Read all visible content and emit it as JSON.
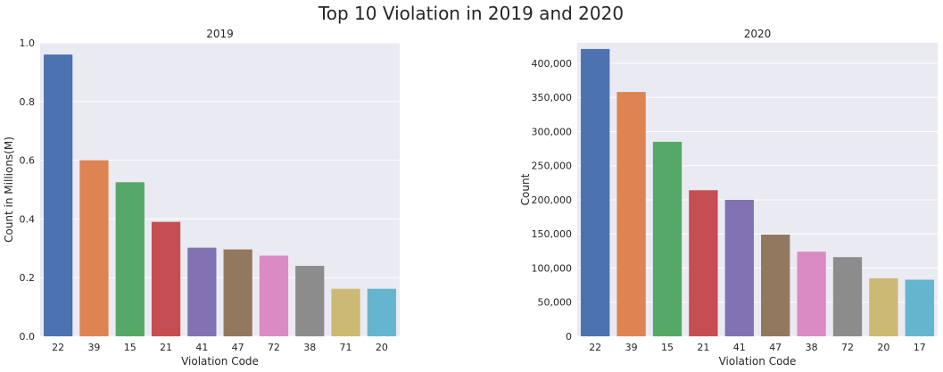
{
  "figure_title": "Top 10 Violation in 2019 and 2020",
  "chart_data": [
    {
      "type": "bar",
      "title": "2019",
      "xlabel": "Violation Code",
      "ylabel": "Count in Millions(M)",
      "categories": [
        "22",
        "39",
        "15",
        "21",
        "41",
        "47",
        "72",
        "38",
        "71",
        "20"
      ],
      "values": [
        0.96,
        0.6,
        0.525,
        0.39,
        0.302,
        0.296,
        0.275,
        0.24,
        0.162,
        0.162
      ],
      "ylim": [
        0,
        1.0
      ],
      "yticks": [
        0.0,
        0.2,
        0.4,
        0.6,
        0.8,
        1.0
      ],
      "ytick_labels": [
        "0.0",
        "0.2",
        "0.4",
        "0.6",
        "0.8",
        "1.0"
      ],
      "grid": true
    },
    {
      "type": "bar",
      "title": "2020",
      "xlabel": "Violation Code",
      "ylabel": "Count",
      "categories": [
        "22",
        "39",
        "15",
        "21",
        "41",
        "47",
        "38",
        "72",
        "20",
        "17"
      ],
      "values": [
        421000,
        358000,
        285000,
        214000,
        200000,
        149000,
        124000,
        116000,
        85000,
        83000
      ],
      "ylim": [
        0,
        430000
      ],
      "yticks": [
        0,
        50000,
        100000,
        150000,
        200000,
        250000,
        300000,
        350000,
        400000
      ],
      "ytick_labels": [
        "0",
        "50,000",
        "100,000",
        "150,000",
        "200,000",
        "250,000",
        "300,000",
        "350,000",
        "400,000"
      ],
      "grid": true
    }
  ],
  "colors": [
    "#4c72b0",
    "#dd8452",
    "#55a868",
    "#c44e52",
    "#8172b3",
    "#937860",
    "#da8bc3",
    "#8c8c8c",
    "#ccb974",
    "#64b5cd"
  ],
  "axes_background": "#eaeaf2",
  "grid_color": "#ffffff"
}
